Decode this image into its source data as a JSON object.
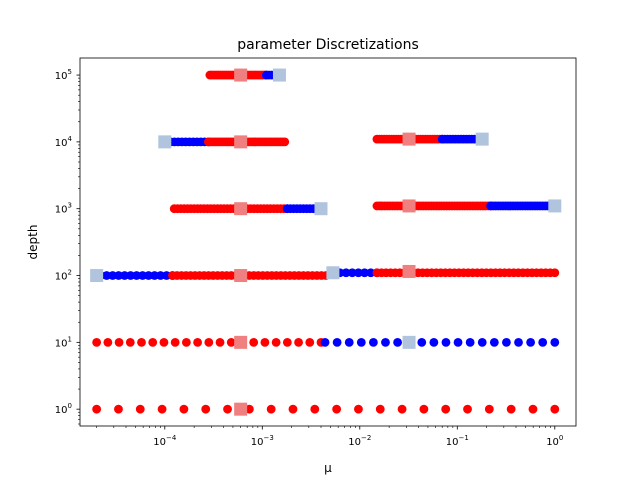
{
  "chart_data": {
    "type": "scatter",
    "title": "parameter Discretizations",
    "xlabel": "μ",
    "ylabel": "depth",
    "xscale": "log",
    "yscale": "log",
    "xlim": [
      1.35e-05,
      1.65
    ],
    "ylim": [
      0.56,
      180000
    ],
    "x_ticks": [
      {
        "value": 0.0001,
        "base": "10",
        "exp": "−4"
      },
      {
        "value": 0.001,
        "base": "10",
        "exp": "−3"
      },
      {
        "value": 0.01,
        "base": "10",
        "exp": "−2"
      },
      {
        "value": 0.1,
        "base": "10",
        "exp": "−1"
      },
      {
        "value": 1,
        "base": "10",
        "exp": "0"
      }
    ],
    "y_ticks": [
      {
        "value": 1,
        "base": "10",
        "exp": "0"
      },
      {
        "value": 10,
        "base": "10",
        "exp": "1"
      },
      {
        "value": 100,
        "base": "10",
        "exp": "2"
      },
      {
        "value": 1000,
        "base": "10",
        "exp": "3"
      },
      {
        "value": 10000,
        "base": "10",
        "exp": "4"
      },
      {
        "value": 100000,
        "base": "10",
        "exp": "5"
      }
    ],
    "grid": false,
    "colors": {
      "red_points": "#ff0000",
      "blue_points": "#0000ff",
      "light_red_square": "#f08080",
      "light_blue_square": "#b0c4de"
    },
    "dot_rows": [
      {
        "depth": 1,
        "color": "red",
        "from": 2e-05,
        "to": 1,
        "count": 22
      },
      {
        "depth": 10,
        "color": "red",
        "from": 2e-05,
        "to": 0.004,
        "count": 21
      },
      {
        "depth": 10,
        "color": "blue",
        "from": 0.0044,
        "to": 1,
        "count": 20
      },
      {
        "depth": 100,
        "color": "blue",
        "from": 2.2e-05,
        "to": 0.00012,
        "count": 13
      },
      {
        "depth": 100,
        "color": "red",
        "from": 0.00012,
        "to": 0.0045,
        "count": 35
      },
      {
        "depth": 110,
        "color": "blue",
        "from": 0.0054,
        "to": 0.015,
        "count": 8
      },
      {
        "depth": 110,
        "color": "red",
        "from": 0.015,
        "to": 1,
        "count": 40
      },
      {
        "depth": 1000,
        "color": "red",
        "from": 0.000125,
        "to": 0.0018,
        "count": 35
      },
      {
        "depth": 1000,
        "color": "blue",
        "from": 0.0018,
        "to": 0.0036,
        "count": 10
      },
      {
        "depth": 1100,
        "color": "red",
        "from": 0.015,
        "to": 0.22,
        "count": 45
      },
      {
        "depth": 1100,
        "color": "blue",
        "from": 0.22,
        "to": 0.95,
        "count": 26
      },
      {
        "depth": 10000,
        "color": "blue",
        "from": 0.000105,
        "to": 0.00028,
        "count": 12
      },
      {
        "depth": 10000,
        "color": "red",
        "from": 0.00028,
        "to": 0.0017,
        "count": 35
      },
      {
        "depth": 11000,
        "color": "red",
        "from": 0.015,
        "to": 0.07,
        "count": 28
      },
      {
        "depth": 11000,
        "color": "blue",
        "from": 0.07,
        "to": 0.17,
        "count": 15
      },
      {
        "depth": 100000,
        "color": "red",
        "from": 0.00029,
        "to": 0.0011,
        "count": 28
      },
      {
        "depth": 100000,
        "color": "blue",
        "from": 0.0011,
        "to": 0.0015,
        "count": 6
      }
    ],
    "square_markers": [
      {
        "x": 0.0006,
        "depth": 1,
        "color": "light_red"
      },
      {
        "x": 0.0006,
        "depth": 10,
        "color": "light_red"
      },
      {
        "x": 0.032,
        "depth": 10,
        "color": "light_blue"
      },
      {
        "x": 2e-05,
        "depth": 100,
        "color": "light_blue"
      },
      {
        "x": 0.0006,
        "depth": 100,
        "color": "light_red"
      },
      {
        "x": 0.0053,
        "depth": 110,
        "color": "light_blue"
      },
      {
        "x": 0.032,
        "depth": 115,
        "color": "light_red"
      },
      {
        "x": 0.0006,
        "depth": 1000,
        "color": "light_red"
      },
      {
        "x": 0.004,
        "depth": 1000,
        "color": "light_blue"
      },
      {
        "x": 0.032,
        "depth": 1100,
        "color": "light_red"
      },
      {
        "x": 1,
        "depth": 1100,
        "color": "light_blue"
      },
      {
        "x": 0.0001,
        "depth": 10000,
        "color": "light_blue"
      },
      {
        "x": 0.0006,
        "depth": 10000,
        "color": "light_red"
      },
      {
        "x": 0.032,
        "depth": 11000,
        "color": "light_red"
      },
      {
        "x": 0.18,
        "depth": 11000,
        "color": "light_blue"
      },
      {
        "x": 0.0006,
        "depth": 100000,
        "color": "light_red"
      },
      {
        "x": 0.0015,
        "depth": 100000,
        "color": "light_blue"
      }
    ]
  }
}
